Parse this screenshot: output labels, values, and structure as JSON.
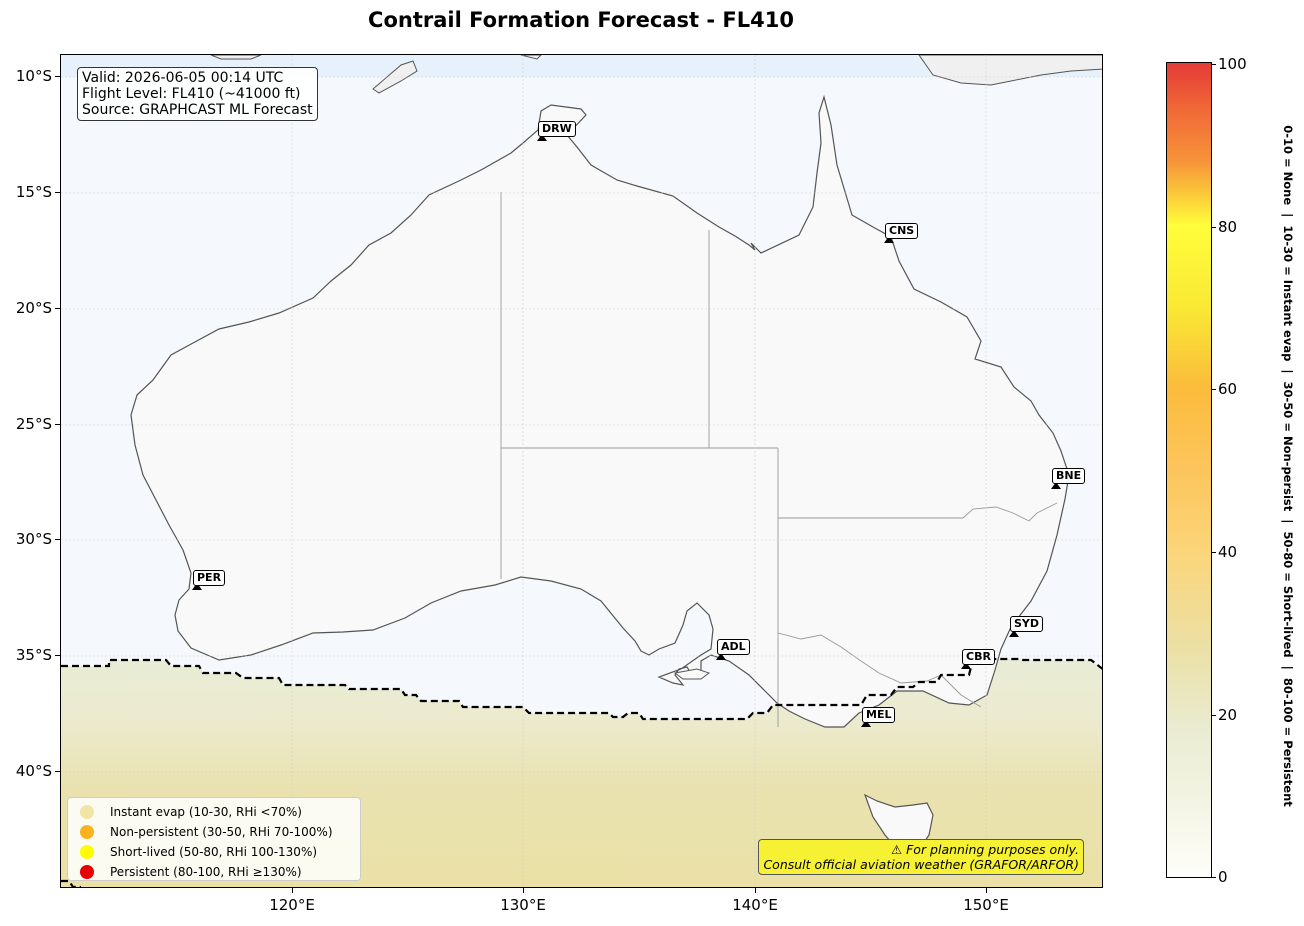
{
  "title": "Contrail Formation Forecast - FL410",
  "info": {
    "valid": "Valid: 2026-06-05 00:14 UTC",
    "flight_level": "Flight Level: FL410 (~41000 ft)",
    "source": "Source: GRAPHCAST ML Forecast"
  },
  "axes": {
    "y_ticks": [
      "10°S",
      "15°S",
      "20°S",
      "25°S",
      "30°S",
      "35°S",
      "40°S"
    ],
    "x_ticks": [
      "120°E",
      "130°E",
      "140°E",
      "150°E"
    ]
  },
  "cities": [
    {
      "code": "DRW",
      "lon": 130.84,
      "lat": -12.46
    },
    {
      "code": "CNS",
      "lon": 145.77,
      "lat": -16.92
    },
    {
      "code": "BNE",
      "lon": 153.03,
      "lat": -27.47
    },
    {
      "code": "PER",
      "lon": 115.86,
      "lat": -31.95
    },
    {
      "code": "SYD",
      "lon": 151.21,
      "lat": -33.87
    },
    {
      "code": "ADL",
      "lon": 138.6,
      "lat": -34.93
    },
    {
      "code": "CBR",
      "lon": 149.13,
      "lat": -35.28
    },
    {
      "code": "MEL",
      "lon": 144.96,
      "lat": -37.81
    }
  ],
  "legend": [
    {
      "label": "Instant evap (10-30, RHi <70%)",
      "color": "#f1e5a6"
    },
    {
      "label": "Non-persistent (30-50, RHi 70-100%)",
      "color": "#fbb21d"
    },
    {
      "label": "Short-lived (50-80, RHi 100-130%)",
      "color": "#fffb00"
    },
    {
      "label": "Persistent (80-100, RHi ≥130%)",
      "color": "#e60000"
    }
  ],
  "warning": {
    "line1": "⚠ For planning purposes only.",
    "line2": "Consult official aviation weather (GRAFOR/ARFOR)"
  },
  "colorbar": {
    "ticks": [
      "0",
      "20",
      "40",
      "60",
      "80",
      "100"
    ],
    "label": "0-10 = None  |  10-30 = Instant evap  |  30-50 = Non-persist  |  50-80 = Short-lived  |  80-100 = Persistent"
  },
  "colors": {
    "ocean": "#f4f9ff",
    "land": "#f9f9f9",
    "instant_evap_zone": "#ebe2a8",
    "threshold_line": "#000000"
  }
}
